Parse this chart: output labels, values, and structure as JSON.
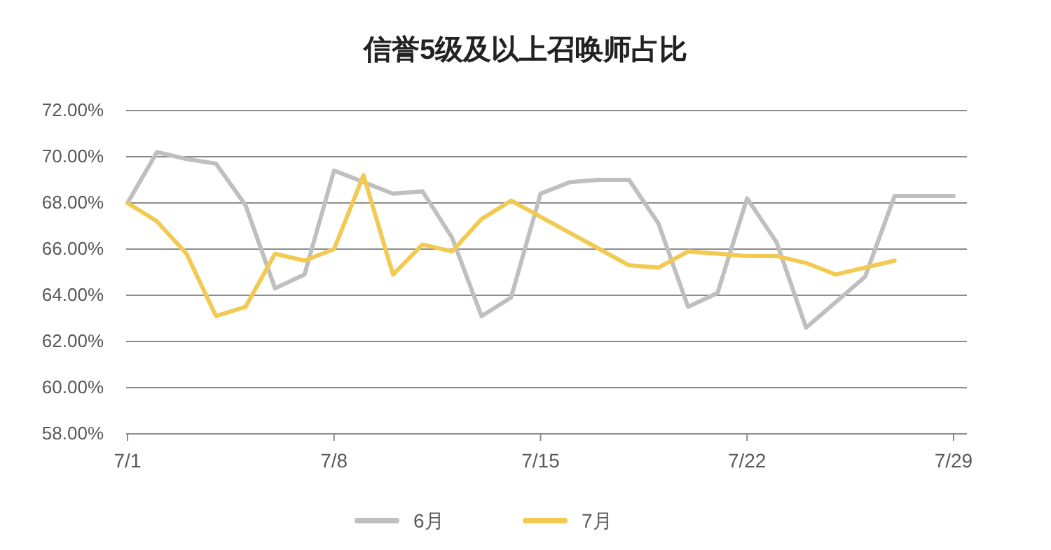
{
  "chart_data": {
    "type": "line",
    "title": "信誉5级及以上召唤师占比",
    "categories": [
      "7/1",
      null,
      null,
      null,
      null,
      null,
      null,
      "7/8",
      null,
      null,
      null,
      null,
      null,
      null,
      "7/15",
      null,
      null,
      null,
      null,
      null,
      null,
      "7/22",
      null,
      null,
      null,
      null,
      null,
      null,
      "7/29"
    ],
    "series": [
      {
        "name": "6月",
        "color": "#bfbfbf",
        "values": [
          68.0,
          70.2,
          69.9,
          69.7,
          67.9,
          64.3,
          64.9,
          69.4,
          68.9,
          68.4,
          68.5,
          66.5,
          63.1,
          63.9,
          68.4,
          68.9,
          69.0,
          69.0,
          67.1,
          63.5,
          64.1,
          68.2,
          66.3,
          62.6,
          63.7,
          64.8,
          68.3,
          68.3,
          68.3
        ]
      },
      {
        "name": "7月",
        "color": "#f2ca52",
        "values": [
          68.0,
          67.2,
          65.8,
          63.1,
          63.5,
          65.8,
          65.5,
          66.0,
          69.2,
          64.9,
          66.2,
          65.9,
          67.3,
          68.1,
          67.4,
          66.7,
          66.0,
          65.3,
          65.2,
          65.9,
          65.8,
          65.7,
          65.7,
          65.4,
          64.9,
          65.2,
          65.5,
          null,
          null
        ]
      }
    ],
    "ylim": [
      58,
      72
    ],
    "yticks": [
      {
        "value": 58,
        "label": "58.00%"
      },
      {
        "value": 60,
        "label": "60.00%"
      },
      {
        "value": 62,
        "label": "62.00%"
      },
      {
        "value": 64,
        "label": "64.00%"
      },
      {
        "value": 66,
        "label": "66.00%"
      },
      {
        "value": 68,
        "label": "68.00%"
      },
      {
        "value": 70,
        "label": "70.00%"
      },
      {
        "value": 72,
        "label": "72.00%"
      }
    ],
    "grid": "y",
    "legend": "bottom",
    "marker": "none",
    "line_style": "solid"
  }
}
